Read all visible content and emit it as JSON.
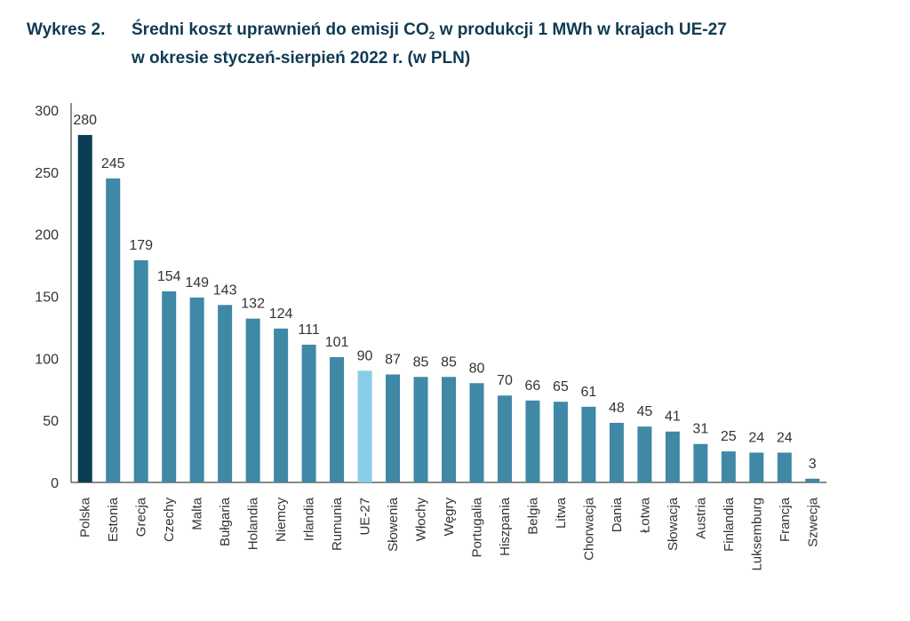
{
  "title": {
    "number": "Wykres 2.",
    "line1_pre": "Średni koszt uprawnień do emisji CO",
    "line1_sub": "2",
    "line1_post": " w produkcji 1 MWh w krajach UE-27",
    "line2": "w okresie styczeń-sierpień 2022 r. (w PLN)"
  },
  "chart_data": {
    "type": "bar",
    "title": "Średni koszt uprawnień do emisji CO2 w produkcji 1 MWh w krajach UE-27 w okresie styczeń-sierpień 2022 r. (w PLN)",
    "categories": [
      "Polska",
      "Estonia",
      "Grecja",
      "Czechy",
      "Malta",
      "Bułgaria",
      "Holandia",
      "Niemcy",
      "Irlandia",
      "Rumunia",
      "UE-27",
      "Słowenia",
      "Włochy",
      "Węgry",
      "Portugalia",
      "Hiszpania",
      "Belgia",
      "Litwa",
      "Chorwacja",
      "Dania",
      "Łotwa",
      "Słowacja",
      "Austria",
      "Finlandia",
      "Luksemburg",
      "Francja",
      "Szwecja"
    ],
    "values": [
      280,
      245,
      179,
      154,
      149,
      143,
      132,
      124,
      111,
      101,
      90,
      87,
      85,
      85,
      80,
      70,
      66,
      65,
      61,
      48,
      45,
      41,
      31,
      25,
      24,
      24,
      3
    ],
    "ylim": [
      0,
      300
    ],
    "yticks": [
      "0",
      "50",
      "100",
      "150",
      "200",
      "250",
      "300"
    ],
    "grid": false,
    "colors": {
      "highlight": "#0b3d55",
      "default": "#3f88a6",
      "average": "#88cde8"
    },
    "highlight_category": "Polska",
    "average_category": "UE-27"
  }
}
